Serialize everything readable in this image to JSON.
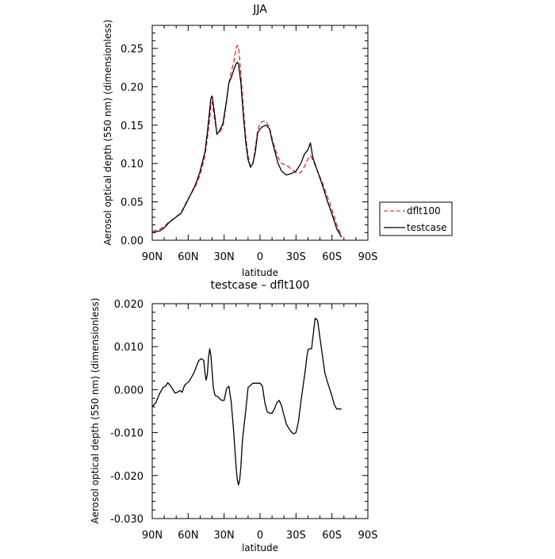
{
  "chart_data": [
    {
      "type": "line",
      "title": "JJA",
      "xlabel": "latitude",
      "ylabel": "Aerosol optical depth (550 nm) (dimensionless)",
      "xlim": [
        90,
        -90
      ],
      "ylim": [
        0.0,
        0.28
      ],
      "x_ticks": [
        {
          "value": 90,
          "label": "90N"
        },
        {
          "value": 60,
          "label": "60N"
        },
        {
          "value": 30,
          "label": "30N"
        },
        {
          "value": 0,
          "label": "0"
        },
        {
          "value": -30,
          "label": "30S"
        },
        {
          "value": -60,
          "label": "60S"
        },
        {
          "value": -90,
          "label": "90S"
        }
      ],
      "y_ticks": [
        {
          "value": 0.0,
          "label": "0.00"
        },
        {
          "value": 0.05,
          "label": "0.05"
        },
        {
          "value": 0.1,
          "label": "0.10"
        },
        {
          "value": 0.15,
          "label": "0.15"
        },
        {
          "value": 0.2,
          "label": "0.20"
        },
        {
          "value": 0.25,
          "label": "0.25"
        }
      ],
      "legend": {
        "placement": "right",
        "entries": [
          "dflt100",
          "testcase"
        ]
      },
      "series": [
        {
          "name": "dflt100",
          "color": "#e0302a",
          "dash": "dashed",
          "x": [
            90,
            84,
            80,
            76,
            72,
            66,
            60,
            54,
            50,
            46,
            44,
            42,
            41,
            40,
            38,
            36,
            34,
            31,
            28,
            26,
            24,
            22,
            20,
            19,
            18,
            16,
            14,
            12,
            10,
            8,
            6,
            4,
            2,
            0,
            -2,
            -5,
            -8,
            -10,
            -12,
            -15,
            -18,
            -22,
            -26,
            -30,
            -34,
            -37,
            -40,
            -42,
            -44,
            -48,
            -52,
            -56,
            -60,
            -64,
            -68
          ],
          "y": [
            0.012,
            0.014,
            0.018,
            0.024,
            0.028,
            0.036,
            0.054,
            0.07,
            0.085,
            0.11,
            0.132,
            0.158,
            0.176,
            0.18,
            0.158,
            0.14,
            0.14,
            0.148,
            0.18,
            0.205,
            0.22,
            0.232,
            0.25,
            0.254,
            0.252,
            0.218,
            0.175,
            0.135,
            0.11,
            0.096,
            0.1,
            0.12,
            0.143,
            0.152,
            0.155,
            0.155,
            0.146,
            0.133,
            0.122,
            0.108,
            0.1,
            0.098,
            0.093,
            0.088,
            0.088,
            0.096,
            0.106,
            0.11,
            0.105,
            0.09,
            0.075,
            0.058,
            0.04,
            0.02,
            0.006
          ]
        },
        {
          "name": "testcase",
          "color": "#000000",
          "dash": "solid",
          "x": [
            90,
            84,
            80,
            76,
            72,
            66,
            60,
            54,
            50,
            46,
            44,
            42,
            41,
            40,
            38,
            36,
            34,
            31,
            28,
            26,
            24,
            22,
            20,
            19,
            18,
            16,
            14,
            12,
            10,
            8,
            6,
            4,
            2,
            0,
            -2,
            -5,
            -8,
            -10,
            -12,
            -15,
            -18,
            -22,
            -26,
            -30,
            -34,
            -37,
            -40,
            -42,
            -44,
            -48,
            -52,
            -56,
            -60,
            -64,
            -68
          ],
          "y": [
            0.01,
            0.012,
            0.016,
            0.023,
            0.028,
            0.035,
            0.053,
            0.072,
            0.09,
            0.115,
            0.14,
            0.17,
            0.185,
            0.188,
            0.165,
            0.138,
            0.142,
            0.152,
            0.182,
            0.205,
            0.212,
            0.222,
            0.23,
            0.232,
            0.23,
            0.205,
            0.165,
            0.128,
            0.105,
            0.095,
            0.1,
            0.115,
            0.14,
            0.145,
            0.148,
            0.15,
            0.145,
            0.13,
            0.118,
            0.1,
            0.09,
            0.085,
            0.087,
            0.09,
            0.1,
            0.112,
            0.118,
            0.127,
            0.108,
            0.09,
            0.072,
            0.052,
            0.034,
            0.015,
            0.004
          ]
        }
      ]
    },
    {
      "type": "line",
      "title": "testcase – dflt100",
      "xlabel": "latitude",
      "ylabel": "Aerosol optical depth (550 nm) (dimensionless)",
      "xlim": [
        90,
        -90
      ],
      "ylim": [
        -0.03,
        0.02
      ],
      "x_ticks": [
        {
          "value": 90,
          "label": "90N"
        },
        {
          "value": 60,
          "label": "60N"
        },
        {
          "value": 30,
          "label": "30N"
        },
        {
          "value": 0,
          "label": "0"
        },
        {
          "value": -30,
          "label": "30S"
        },
        {
          "value": -60,
          "label": "60S"
        },
        {
          "value": -90,
          "label": "90S"
        }
      ],
      "y_ticks": [
        {
          "value": -0.03,
          "label": "-0.030"
        },
        {
          "value": -0.02,
          "label": "-0.020"
        },
        {
          "value": -0.01,
          "label": "-0.010"
        },
        {
          "value": 0.0,
          "label": "0.000"
        },
        {
          "value": 0.01,
          "label": "0.010"
        },
        {
          "value": 0.02,
          "label": "0.020"
        }
      ],
      "series": [
        {
          "color": "#000000",
          "dash": "solid",
          "x": [
            90,
            87,
            84,
            81,
            79,
            77,
            75,
            73,
            71,
            69,
            67,
            65,
            63,
            61,
            59,
            57,
            55,
            53,
            51,
            49,
            47,
            46,
            45,
            44,
            43,
            42,
            41,
            40,
            39,
            38,
            37,
            36,
            34,
            32,
            30,
            28,
            26,
            24,
            22,
            20,
            19,
            18,
            17,
            16,
            15,
            14,
            12,
            10,
            8,
            6,
            4,
            2,
            0,
            -2,
            -4,
            -6,
            -8,
            -10,
            -12,
            -14,
            -16,
            -18,
            -20,
            -22,
            -24,
            -26,
            -28,
            -30,
            -32,
            -34,
            -36,
            -38,
            -39,
            -40,
            -41,
            -42,
            -43,
            -44,
            -46,
            -48,
            -50,
            -52,
            -54,
            -56,
            -58,
            -60,
            -62,
            -64,
            -66,
            -68
          ],
          "y": [
            -0.004,
            -0.003,
            -0.001,
            0.0005,
            0.0008,
            0.0016,
            0.001,
            0.0001,
            -0.0008,
            -0.0006,
            -0.0002,
            -0.0006,
            0.001,
            0.0015,
            0.002,
            0.003,
            0.004,
            0.0055,
            0.0068,
            0.0072,
            0.0068,
            0.004,
            0.0022,
            0.0035,
            0.0075,
            0.0095,
            0.008,
            0.004,
            0.0005,
            -0.001,
            -0.0015,
            -0.0015,
            -0.002,
            -0.0025,
            -0.0025,
            0.0002,
            0.0008,
            -0.003,
            -0.01,
            -0.018,
            -0.021,
            -0.0222,
            -0.021,
            -0.018,
            -0.013,
            -0.01,
            -0.005,
            0.0005,
            0.001,
            0.0015,
            0.0015,
            0.0015,
            0.0015,
            0.0008,
            -0.003,
            -0.0052,
            -0.0055,
            -0.0055,
            -0.0045,
            -0.003,
            -0.0025,
            -0.0038,
            -0.006,
            -0.008,
            -0.009,
            -0.0098,
            -0.0103,
            -0.01,
            -0.0075,
            -0.003,
            0.001,
            0.005,
            0.0075,
            0.0092,
            0.0095,
            0.0095,
            0.0095,
            0.012,
            0.0166,
            0.0162,
            0.012,
            0.008,
            0.004,
            0.002,
            0.0003,
            -0.0015,
            -0.0035,
            -0.0045,
            -0.0045,
            -0.0045
          ]
        }
      ]
    }
  ]
}
